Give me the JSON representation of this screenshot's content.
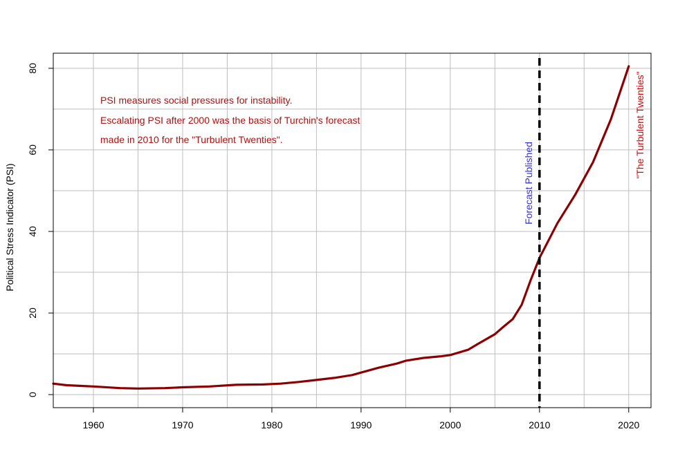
{
  "chart_data": {
    "type": "line",
    "title": "",
    "xlabel": "",
    "ylabel": "Political Stress Indicator (PSI)",
    "xlim": [
      1955.5,
      2022.5
    ],
    "ylim": [
      -3.2,
      83.7
    ],
    "xticks": [
      "1960",
      "1970",
      "1980",
      "1990",
      "2000",
      "2010",
      "2020"
    ],
    "yticks": [
      "0",
      "20",
      "40",
      "60",
      "80"
    ],
    "grid": true,
    "colors": {
      "series": "#8b0000",
      "forecast_line": "#000000",
      "forecast_label": "#3333cc",
      "twenties_label": "#e00000",
      "notes": "#b01010",
      "grid": "#bebebe"
    },
    "series": [
      {
        "x": [
          1955.5,
          1957,
          1960,
          1963,
          1965,
          1968,
          1970,
          1973,
          1976,
          1979,
          1981,
          1983,
          1985,
          1987,
          1989,
          1990,
          1992,
          1994,
          1995,
          1997,
          1999,
          2000,
          2002,
          2003,
          2005,
          2006,
          2007,
          2008,
          2009,
          2010,
          2012,
          2014,
          2016,
          2018,
          2020
        ],
        "y": [
          2.7,
          2.3,
          2.0,
          1.6,
          1.5,
          1.6,
          1.8,
          2.0,
          2.4,
          2.5,
          2.7,
          3.1,
          3.6,
          4.1,
          4.8,
          5.4,
          6.6,
          7.6,
          8.3,
          9.0,
          9.4,
          9.7,
          11.0,
          12.3,
          14.8,
          16.7,
          18.5,
          22.0,
          28.0,
          33.5,
          42.0,
          49.0,
          57.0,
          67.5,
          80.5
        ]
      }
    ],
    "forecast_year": 2010,
    "annotations": {
      "forecast": "Forecast Published",
      "twenties": "\"The Turbulent Twenties\"",
      "note_lines": [
        "PSI measures social pressures for instability.",
        "Escalating PSI after 2000 was the basis of Turchin's forecast",
        "made in 2010 for the \"Turbulent Twenties\"."
      ]
    }
  }
}
